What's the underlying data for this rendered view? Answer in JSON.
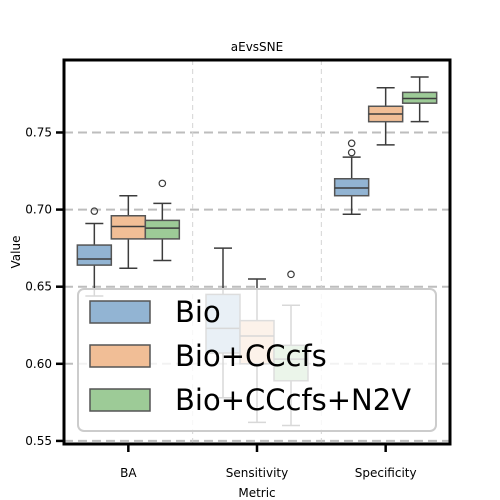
{
  "chart_data": {
    "type": "box",
    "title": "aEvsSNE",
    "xlabel": "Metric",
    "ylabel": "Value",
    "ylim": [
      0.548,
      0.797
    ],
    "yticks": [
      "0.55",
      "0.60",
      "0.65",
      "0.70",
      "0.75"
    ],
    "categories": [
      "BA",
      "Sensitivity",
      "Specificity"
    ],
    "grid": true,
    "legend_position": "lower-left",
    "series": [
      {
        "name": "Bio",
        "color": "#92b4d3",
        "boxes": [
          {
            "min": 0.644,
            "q1": 0.664,
            "median": 0.668,
            "q3": 0.677,
            "max": 0.691,
            "outliers": [
              0.699
            ]
          },
          {
            "min": 0.578,
            "q1": 0.607,
            "median": 0.623,
            "q3": 0.645,
            "max": 0.675,
            "outliers": []
          },
          {
            "min": 0.697,
            "q1": 0.709,
            "median": 0.714,
            "q3": 0.72,
            "max": 0.734,
            "outliers": [
              0.737,
              0.743
            ]
          }
        ]
      },
      {
        "name": "Bio+CCcfs",
        "color": "#f1be96",
        "boxes": [
          {
            "min": 0.662,
            "q1": 0.681,
            "median": 0.689,
            "q3": 0.696,
            "max": 0.709,
            "outliers": []
          },
          {
            "min": 0.562,
            "q1": 0.6,
            "median": 0.618,
            "q3": 0.628,
            "max": 0.655,
            "outliers": []
          },
          {
            "min": 0.742,
            "q1": 0.757,
            "median": 0.762,
            "q3": 0.767,
            "max": 0.779,
            "outliers": []
          }
        ]
      },
      {
        "name": "Bio+CCcfs+N2V",
        "color": "#9dcb97",
        "boxes": [
          {
            "min": 0.667,
            "q1": 0.681,
            "median": 0.688,
            "q3": 0.693,
            "max": 0.704,
            "outliers": [
              0.717
            ]
          },
          {
            "min": 0.56,
            "q1": 0.589,
            "median": 0.603,
            "q3": 0.612,
            "max": 0.638,
            "outliers": [
              0.658
            ]
          },
          {
            "min": 0.757,
            "q1": 0.769,
            "median": 0.772,
            "q3": 0.776,
            "max": 0.786,
            "outliers": []
          }
        ]
      }
    ]
  }
}
